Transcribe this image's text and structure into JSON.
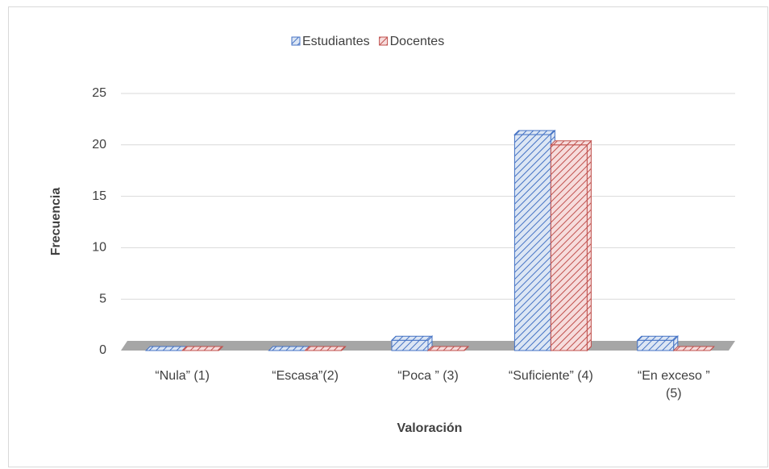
{
  "chart_data": {
    "type": "bar3d",
    "xlabel": "Valoración",
    "ylabel": "Frecuencia",
    "categories": [
      "“Nula” (1)",
      "“Escasa”(2)",
      "“Poca ” (3)",
      "“Suficiente” (4)",
      "“En exceso ” (5)"
    ],
    "series": [
      {
        "name": "Estudiantes",
        "color": "#4472c4",
        "values": [
          0,
          0,
          1,
          21,
          1
        ]
      },
      {
        "name": "Docentes",
        "color": "#c0504d",
        "values": [
          0,
          0,
          0,
          20,
          0
        ]
      }
    ],
    "ylim": [
      0,
      25
    ],
    "yticks": [
      0,
      5,
      10,
      15,
      20,
      25
    ],
    "grid": true,
    "legend": "top"
  }
}
